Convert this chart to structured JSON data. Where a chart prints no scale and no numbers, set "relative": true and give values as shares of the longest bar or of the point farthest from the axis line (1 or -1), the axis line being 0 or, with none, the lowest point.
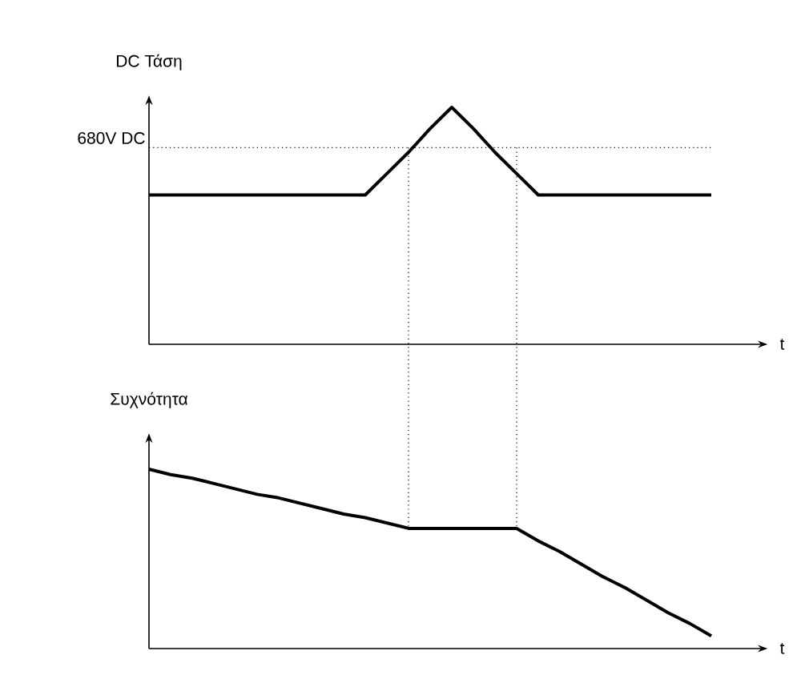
{
  "chart_data": [
    {
      "type": "line",
      "relative": true,
      "ylabel": "DC Τάση",
      "xlabel": "t",
      "marker": "none",
      "line_style": "solid",
      "categories": [
        null,
        null,
        null,
        null,
        null,
        null,
        null,
        null,
        null,
        null,
        null,
        null,
        null,
        null,
        null,
        null,
        null,
        null,
        null,
        null,
        null,
        null,
        null,
        null,
        null,
        null,
        null
      ],
      "series": [
        {
          "color": "#000000",
          "values": [
            0.63,
            0.63,
            0.63,
            0.63,
            0.63,
            0.63,
            0.63,
            0.63,
            0.63,
            0.63,
            0.63,
            0.72,
            0.81,
            0.91,
            1,
            0.91,
            0.81,
            0.72,
            0.63,
            0.63,
            0.63,
            0.63,
            0.63,
            0.63,
            0.63,
            0.63,
            0.63
          ]
        }
      ],
      "ref_lines": [
        {
          "axis": "y",
          "value": 0.83,
          "label": "680V DC",
          "line_style": "dotted",
          "color": "#000000"
        }
      ]
    },
    {
      "type": "line",
      "relative": true,
      "ylabel": "Συχνότητα",
      "xlabel": "t",
      "marker": "none",
      "line_style": "solid",
      "categories": [
        null,
        null,
        null,
        null,
        null,
        null,
        null,
        null,
        null,
        null,
        null,
        null,
        null,
        null,
        null,
        null,
        null,
        null,
        null,
        null,
        null,
        null,
        null,
        null,
        null,
        null,
        null
      ],
      "series": [
        {
          "color": "#000000",
          "values": [
            1,
            0.97,
            0.95,
            0.92,
            0.89,
            0.86,
            0.84,
            0.81,
            0.78,
            0.75,
            0.73,
            0.7,
            0.67,
            0.67,
            0.67,
            0.67,
            0.67,
            0.67,
            0.6,
            0.54,
            0.47,
            0.4,
            0.34,
            0.27,
            0.2,
            0.14,
            0.07
          ]
        }
      ]
    }
  ]
}
